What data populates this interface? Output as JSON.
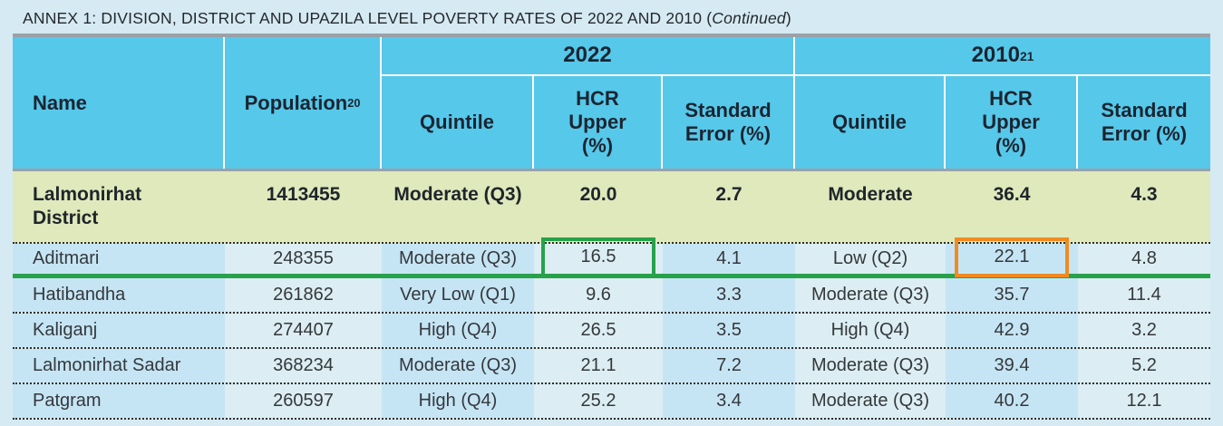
{
  "title": {
    "prefix": "ANNEX 1: DIVISION, DISTRICT AND UPAZILA LEVEL POVERTY RATES OF 2022 AND 2010 (",
    "continued": "Continued",
    "suffix": ")"
  },
  "table": {
    "header": {
      "name": "Name",
      "population": "Population",
      "population_sup": "20",
      "group_2022": "2022",
      "group_2010": "2010",
      "group_2010_sup": "21",
      "quintile": "Quintile",
      "hcr_upper": "HCR\nUpper\n(%)",
      "std_error": "Standard\nError (%)"
    },
    "district_row": {
      "name": "Lalmonirhat\nDistrict",
      "population": "1413455",
      "q2022": "Moderate (Q3)",
      "hcr2022": "20.0",
      "se2022": "2.7",
      "q2010": "Moderate",
      "hcr2010": "36.4",
      "se2010": "4.3"
    },
    "rows": [
      {
        "name": "Aditmari",
        "population": "248355",
        "q2022": "Moderate (Q3)",
        "hcr2022": "16.5",
        "se2022": "4.1",
        "q2010": "Low (Q2)",
        "hcr2010": "22.1",
        "se2010": "4.8"
      },
      {
        "name": "Hatibandha",
        "population": "261862",
        "q2022": "Very Low (Q1)",
        "hcr2022": "9.6",
        "se2022": "3.3",
        "q2010": "Moderate (Q3)",
        "hcr2010": "35.7",
        "se2010": "11.4"
      },
      {
        "name": "Kaliganj",
        "population": "274407",
        "q2022": "High (Q4)",
        "hcr2022": "26.5",
        "se2022": "3.5",
        "q2010": "High (Q4)",
        "hcr2010": "42.9",
        "se2010": "3.2"
      },
      {
        "name": "Lalmonirhat Sadar",
        "population": "368234",
        "q2022": "Moderate (Q3)",
        "hcr2022": "21.1",
        "se2022": "7.2",
        "q2010": "Moderate (Q3)",
        "hcr2010": "39.4",
        "se2010": "5.2"
      },
      {
        "name": "Patgram",
        "population": "260597",
        "q2022": "High (Q4)",
        "hcr2022": "25.2",
        "se2022": "3.4",
        "q2010": "Moderate (Q3)",
        "hcr2010": "40.2",
        "se2010": "12.1"
      }
    ],
    "highlights": {
      "green_box_row": "Aditmari",
      "green_box_column": "2022 HCR Upper (%)",
      "green_box_value": "16.5",
      "green_color": "#27a24a",
      "orange_box_row": "Aditmari",
      "orange_box_column": "2010 HCR Upper (%)",
      "orange_box_value": "22.1",
      "orange_color": "#f08b21"
    }
  }
}
